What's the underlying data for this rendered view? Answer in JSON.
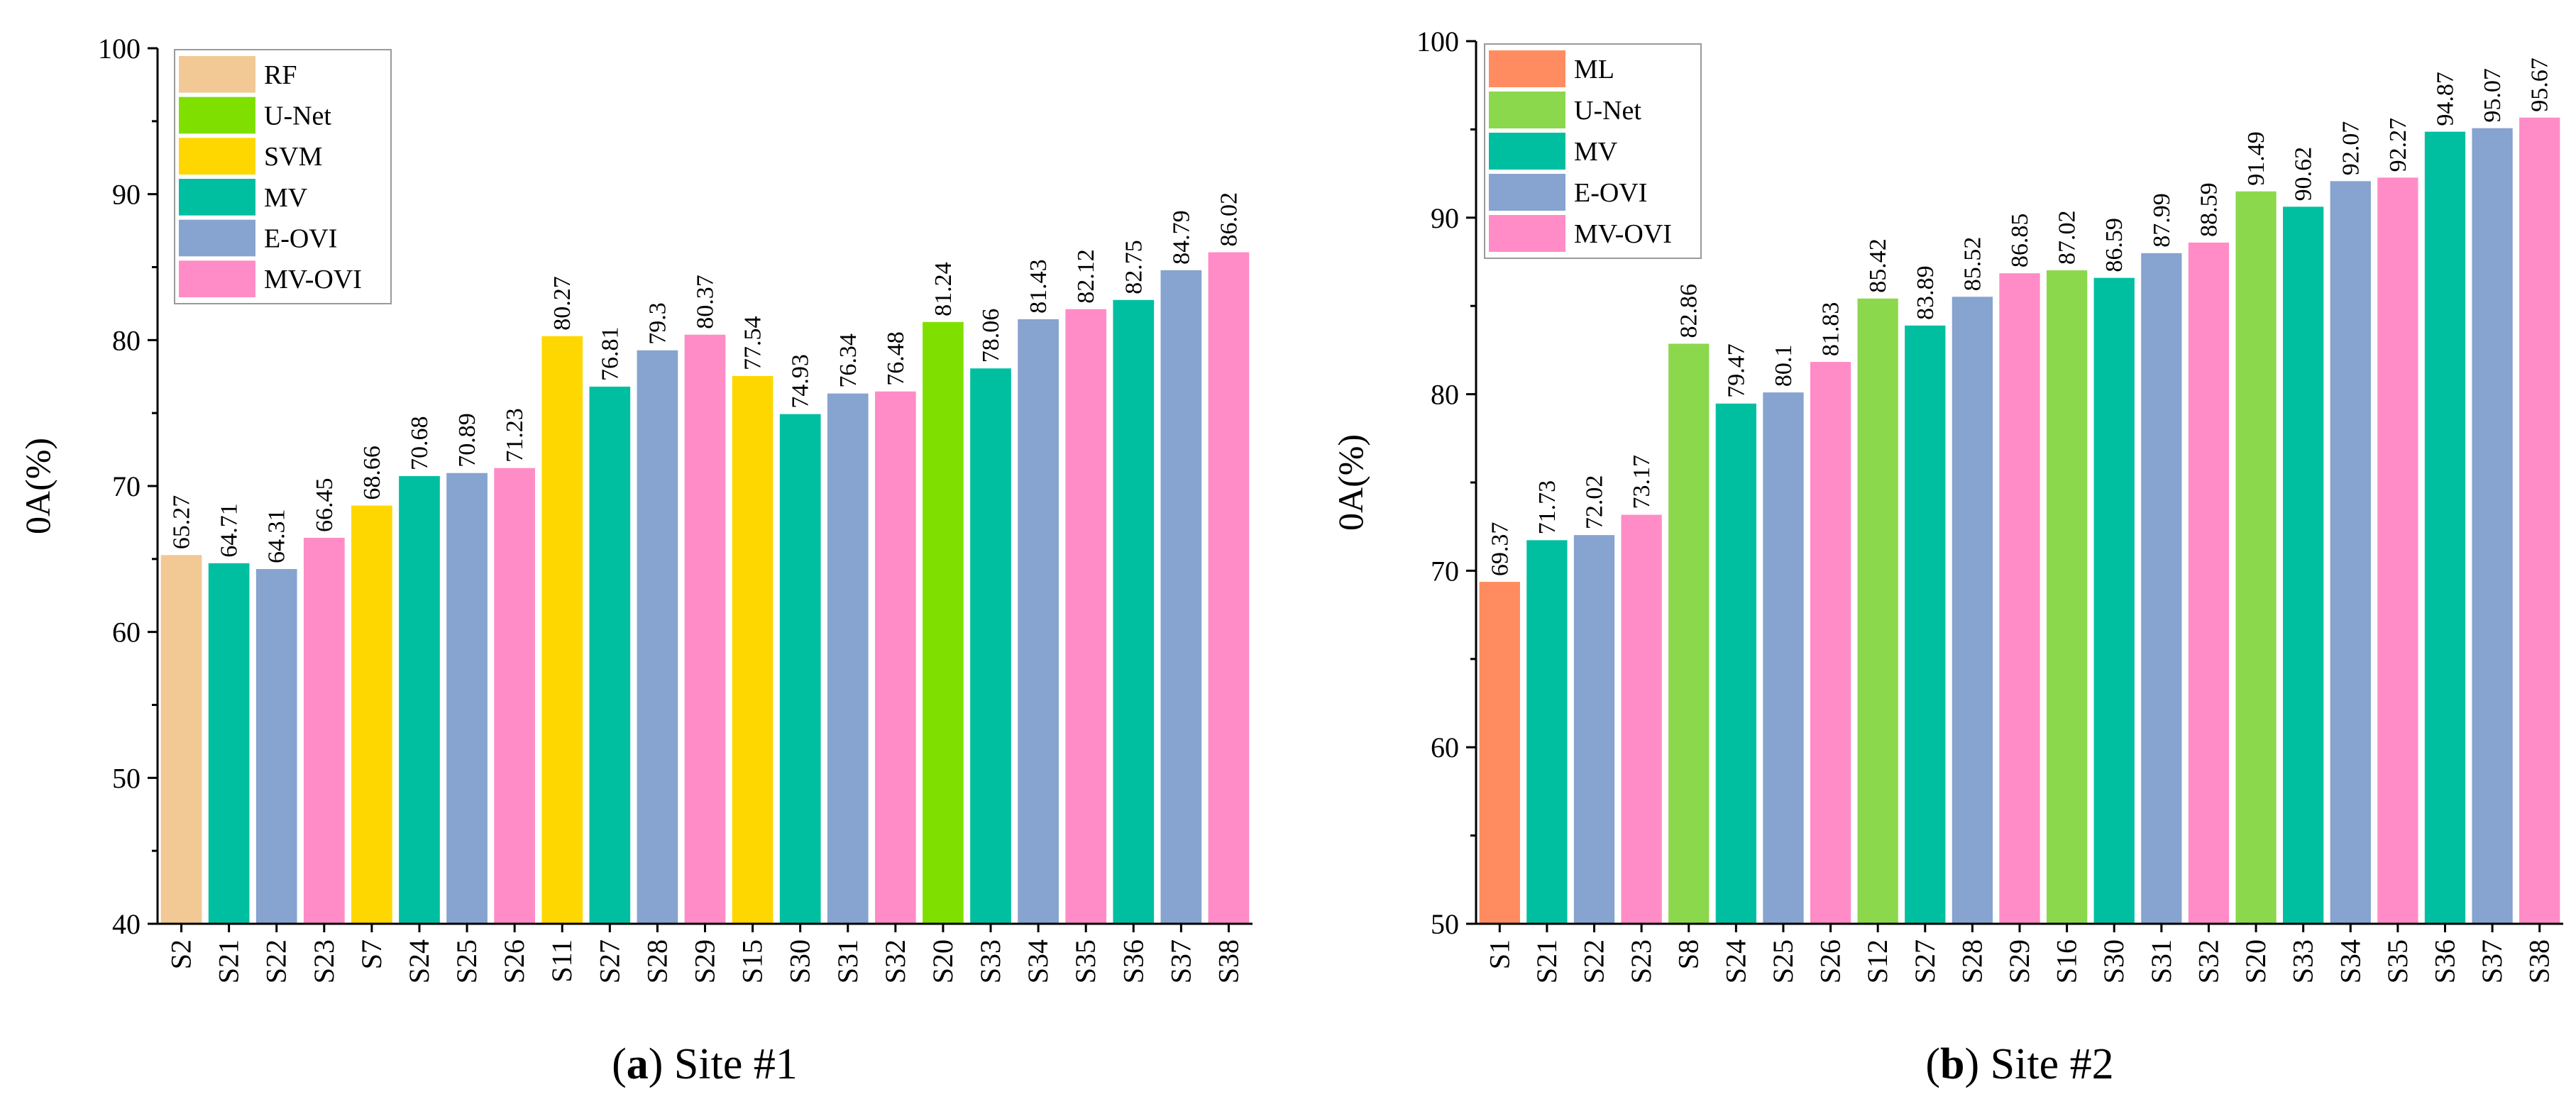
{
  "chart_data": [
    {
      "type": "bar",
      "ylabel": "0A(%)",
      "ylim": [
        40,
        100
      ],
      "yticks": [
        40,
        50,
        60,
        70,
        80,
        90,
        100
      ],
      "caption_letter": "a",
      "caption_text": " Site #1",
      "legend_placement": "top-left",
      "legend": [
        {
          "name": "RF",
          "color": "#F2C894"
        },
        {
          "name": "U-Net",
          "color": "#7FE000"
        },
        {
          "name": "SVM",
          "color": "#FFD700"
        },
        {
          "name": "MV",
          "color": "#00BFA0"
        },
        {
          "name": "E-OVI",
          "color": "#87A3CF"
        },
        {
          "name": "MV-OVI",
          "color": "#FF8CC6"
        }
      ],
      "categories": [
        "S2",
        "S21",
        "S22",
        "S23",
        "S7",
        "S24",
        "S25",
        "S26",
        "S11",
        "S27",
        "S28",
        "S29",
        "S15",
        "S30",
        "S31",
        "S32",
        "S20",
        "S33",
        "S34",
        "S35",
        "S36",
        "S37",
        "S38"
      ],
      "values": [
        65.27,
        64.71,
        64.31,
        66.45,
        68.66,
        70.68,
        70.89,
        71.23,
        80.27,
        76.81,
        79.3,
        80.37,
        77.54,
        74.93,
        76.34,
        76.48,
        81.24,
        78.06,
        81.43,
        82.12,
        82.75,
        84.79,
        86.02
      ],
      "value_labels": [
        "65.27",
        "64.71",
        "64.31",
        "66.45",
        "68.66",
        "70.68",
        "70.89",
        "71.23",
        "80.27",
        "76.81",
        "79.3",
        "80.37",
        "77.54",
        "74.93",
        "76.34",
        "76.48",
        "81.24",
        "78.06",
        "81.43",
        "82.12",
        "82.75",
        "84.79",
        "86.02"
      ],
      "groups": [
        "RF",
        "MV",
        "E-OVI",
        "MV-OVI",
        "SVM",
        "MV",
        "E-OVI",
        "MV-OVI",
        "SVM",
        "MV",
        "E-OVI",
        "MV-OVI",
        "SVM",
        "MV",
        "E-OVI",
        "MV-OVI",
        "U-Net",
        "MV",
        "E-OVI",
        "MV-OVI",
        "MV",
        "E-OVI",
        "MV-OVI"
      ]
    },
    {
      "type": "bar",
      "ylabel": "0A(%)",
      "ylim": [
        50,
        100
      ],
      "yticks": [
        50,
        60,
        70,
        80,
        90,
        100
      ],
      "caption_letter": "b",
      "caption_text": " Site #2",
      "legend_placement": "top-left",
      "legend": [
        {
          "name": "ML",
          "color": "#FF8C60"
        },
        {
          "name": "U-Net",
          "color": "#8CD84C"
        },
        {
          "name": "MV",
          "color": "#00BFA0"
        },
        {
          "name": "E-OVI",
          "color": "#87A3CF"
        },
        {
          "name": "MV-OVI",
          "color": "#FF8CC6"
        }
      ],
      "categories": [
        "S1",
        "S21",
        "S22",
        "S23",
        "S8",
        "S24",
        "S25",
        "S26",
        "S12",
        "S27",
        "S28",
        "S29",
        "S16",
        "S30",
        "S31",
        "S32",
        "S20",
        "S33",
        "S34",
        "S35",
        "S36",
        "S37",
        "S38"
      ],
      "values": [
        69.37,
        71.73,
        72.02,
        73.17,
        82.86,
        79.47,
        80.1,
        81.83,
        85.42,
        83.89,
        85.52,
        86.85,
        87.02,
        86.59,
        87.99,
        88.59,
        91.49,
        90.62,
        92.07,
        92.27,
        94.87,
        95.07,
        95.67
      ],
      "value_labels": [
        "69.37",
        "71.73",
        "72.02",
        "73.17",
        "82.86",
        "79.47",
        "80.1",
        "81.83",
        "85.42",
        "83.89",
        "85.52",
        "86.85",
        "87.02",
        "86.59",
        "87.99",
        "88.59",
        "91.49",
        "90.62",
        "92.07",
        "92.27",
        "94.87",
        "95.07",
        "95.67"
      ],
      "groups": [
        "ML",
        "MV",
        "E-OVI",
        "MV-OVI",
        "U-Net",
        "MV",
        "E-OVI",
        "MV-OVI",
        "U-Net",
        "MV",
        "E-OVI",
        "MV-OVI",
        "U-Net",
        "MV",
        "E-OVI",
        "MV-OVI",
        "U-Net",
        "MV",
        "E-OVI",
        "MV-OVI",
        "MV",
        "E-OVI",
        "MV-OVI"
      ]
    }
  ]
}
